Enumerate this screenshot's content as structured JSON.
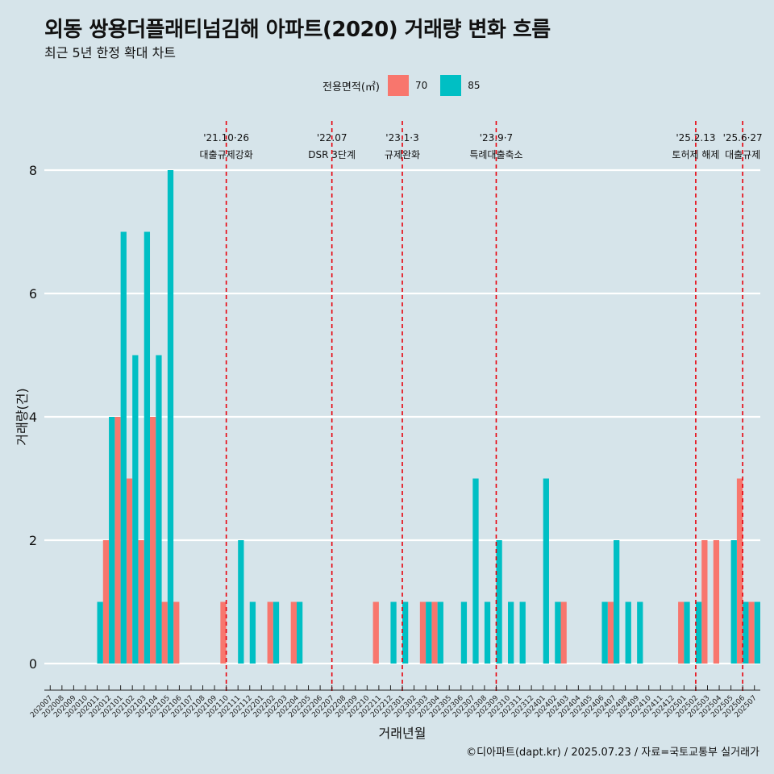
{
  "title": "외동 쌍용더플래티넘김해 아파트(2020) 거래량 변화 흐름",
  "subtitle": "최근 5년 한정 확대 차트",
  "caption": "©디아파트(dapt.kr) / 2025.07.23 / 자료=국토교통부 실거래가",
  "colors": {
    "background": "#d6e4ea",
    "s70": "#f8766d",
    "s85": "#00bfc4",
    "event_line": "#e8000b",
    "grid": "#ffffff"
  },
  "legend": {
    "title": "전용면적(㎡)",
    "items": [
      "70",
      "85"
    ]
  },
  "chart_data": {
    "type": "bar",
    "xlabel": "거래년월",
    "ylabel": "거래량(건)",
    "ylim": [
      0,
      8
    ],
    "yticks": [
      0,
      2,
      4,
      6,
      8
    ],
    "grid": true,
    "legend_position": "top",
    "categories": [
      "202007",
      "202008",
      "202009",
      "202010",
      "202011",
      "202012",
      "202101",
      "202102",
      "202103",
      "202104",
      "202105",
      "202106",
      "202107",
      "202108",
      "202109",
      "202110",
      "202111",
      "202112",
      "202201",
      "202202",
      "202203",
      "202204",
      "202205",
      "202206",
      "202207",
      "202208",
      "202209",
      "202210",
      "202211",
      "202212",
      "202301",
      "202302",
      "202303",
      "202304",
      "202305",
      "202306",
      "202307",
      "202308",
      "202309",
      "202310",
      "202311",
      "202312",
      "202401",
      "202402",
      "202403",
      "202404",
      "202405",
      "202406",
      "202407",
      "202408",
      "202409",
      "202410",
      "202411",
      "202412",
      "202501",
      "202502",
      "202503",
      "202504",
      "202505",
      "202506",
      "202507"
    ],
    "series": [
      {
        "name": "70",
        "values": [
          0,
          0,
          0,
          0,
          0,
          2,
          4,
          3,
          2,
          4,
          1,
          1,
          0,
          0,
          0,
          1,
          0,
          0,
          0,
          1,
          0,
          1,
          0,
          0,
          0,
          0,
          0,
          0,
          1,
          0,
          0,
          0,
          1,
          1,
          0,
          0,
          0,
          0,
          0,
          0,
          0,
          0,
          0,
          0,
          1,
          0,
          0,
          0,
          1,
          0,
          0,
          0,
          0,
          0,
          1,
          0,
          2,
          2,
          0,
          3,
          1
        ]
      },
      {
        "name": "85",
        "values": [
          0,
          0,
          0,
          0,
          1,
          4,
          7,
          5,
          7,
          5,
          8,
          0,
          0,
          0,
          0,
          0,
          2,
          1,
          0,
          1,
          0,
          1,
          0,
          0,
          0,
          0,
          0,
          0,
          0,
          1,
          1,
          0,
          1,
          1,
          0,
          1,
          3,
          1,
          2,
          1,
          1,
          0,
          3,
          1,
          0,
          0,
          0,
          1,
          2,
          1,
          1,
          0,
          0,
          0,
          1,
          1,
          0,
          0,
          2,
          1,
          1
        ]
      }
    ],
    "events": [
      {
        "date": "'21.10·26",
        "label": "대출규제강화",
        "category": "202110"
      },
      {
        "date": "'22.07",
        "label": "DSR 3단계",
        "category": "202207"
      },
      {
        "date": "'23.1·3",
        "label": "규제완화",
        "category": "202301"
      },
      {
        "date": "'23.9·7",
        "label": "특례대출축소",
        "category": "202309"
      },
      {
        "date": "'25.2.13",
        "label": "토허제 해제",
        "category": "202502"
      },
      {
        "date": "'25.6·27",
        "label": "대출규제",
        "category": "202506"
      }
    ]
  }
}
